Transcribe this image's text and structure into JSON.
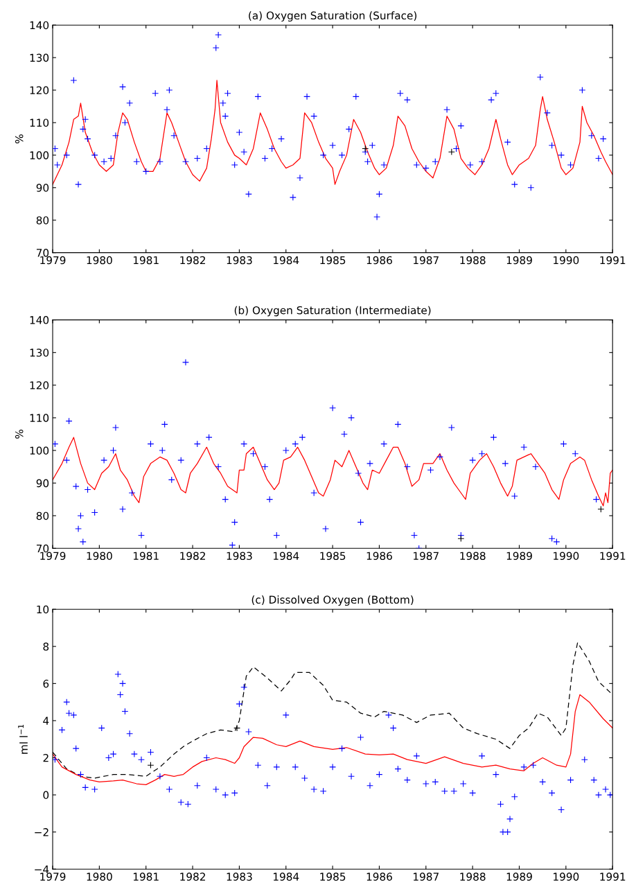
{
  "chart_data": [
    {
      "type": "line",
      "title": "(a) Oxygen Saturation (Surface)",
      "ylabel": "%",
      "xlim": [
        1979,
        1991
      ],
      "xticks": [
        1979,
        1980,
        1981,
        1982,
        1983,
        1984,
        1985,
        1986,
        1987,
        1988,
        1989,
        1990,
        1991
      ],
      "ylim": [
        70,
        140
      ],
      "yticks": [
        70,
        80,
        90,
        100,
        110,
        120,
        130,
        140
      ],
      "series": [
        {
          "color": "#ff0000",
          "line_style": "solid",
          "x": [
            1979.0,
            1979.2,
            1979.35,
            1979.45,
            1979.55,
            1979.6,
            1979.7,
            1979.85,
            1980.0,
            1980.15,
            1980.3,
            1980.4,
            1980.5,
            1980.6,
            1980.75,
            1980.9,
            1981.0,
            1981.15,
            1981.3,
            1981.45,
            1981.55,
            1981.7,
            1981.85,
            1982.0,
            1982.15,
            1982.3,
            1982.4,
            1982.48,
            1982.52,
            1982.6,
            1982.75,
            1982.9,
            1983.0,
            1983.15,
            1983.3,
            1983.45,
            1983.6,
            1983.75,
            1983.9,
            1984.0,
            1984.15,
            1984.3,
            1984.4,
            1984.55,
            1984.7,
            1984.85,
            1985.0,
            1985.05,
            1985.15,
            1985.3,
            1985.45,
            1985.6,
            1985.75,
            1985.9,
            1986.0,
            1986.15,
            1986.3,
            1986.4,
            1986.55,
            1986.7,
            1986.85,
            1987.0,
            1987.15,
            1987.3,
            1987.45,
            1987.6,
            1987.75,
            1987.9,
            1988.05,
            1988.2,
            1988.35,
            1988.5,
            1988.6,
            1988.75,
            1988.85,
            1989.0,
            1989.2,
            1989.35,
            1989.45,
            1989.5,
            1989.6,
            1989.75,
            1989.9,
            1990.0,
            1990.15,
            1990.3,
            1990.35,
            1990.45,
            1990.6,
            1990.75,
            1990.85,
            1991.0
          ],
          "values": [
            91,
            97,
            104,
            111,
            112,
            116,
            107,
            101,
            97,
            95,
            97,
            107,
            113,
            111,
            104,
            98,
            95,
            95,
            99,
            113,
            110,
            104,
            98,
            94,
            92,
            96,
            105,
            114,
            123,
            110,
            104,
            100,
            99,
            97,
            102,
            113,
            108,
            102,
            98,
            96,
            97,
            99,
            113,
            110,
            104,
            99,
            96,
            91,
            95,
            100,
            111,
            107,
            101,
            96,
            94,
            96,
            103,
            112,
            109,
            102,
            98,
            95,
            93,
            99,
            112,
            108,
            99,
            96,
            94,
            97,
            102,
            111,
            105,
            97,
            94,
            97,
            99,
            103,
            114,
            118,
            111,
            104,
            96,
            94,
            96,
            104,
            115,
            110,
            106,
            101,
            98,
            94
          ]
        },
        {
          "type": "scatter",
          "marker": "cross",
          "color": "#0000ff",
          "x": [
            1979.05,
            1979.1,
            1979.3,
            1979.45,
            1979.55,
            1979.65,
            1979.7,
            1979.75,
            1979.9,
            1980.1,
            1980.25,
            1980.35,
            1980.5,
            1980.55,
            1980.65,
            1980.8,
            1981.0,
            1981.2,
            1981.3,
            1981.45,
            1981.5,
            1981.6,
            1981.85,
            1982.1,
            1982.3,
            1982.5,
            1982.55,
            1982.65,
            1982.7,
            1982.75,
            1982.9,
            1983.0,
            1983.1,
            1983.2,
            1983.4,
            1983.55,
            1983.7,
            1983.9,
            1984.15,
            1984.3,
            1984.45,
            1984.6,
            1984.8,
            1985.0,
            1985.2,
            1985.35,
            1985.5,
            1985.7,
            1985.75,
            1985.85,
            1985.95,
            1986.0,
            1986.1,
            1986.45,
            1986.6,
            1986.8,
            1987.0,
            1987.2,
            1987.45,
            1987.65,
            1987.75,
            1987.95,
            1988.2,
            1988.4,
            1988.5,
            1988.75,
            1988.9,
            1989.25,
            1989.45,
            1989.6,
            1989.7,
            1989.9,
            1990.1,
            1990.35,
            1990.55,
            1990.7,
            1990.8
          ],
          "values": [
            102,
            97,
            100,
            123,
            91,
            108,
            111,
            105,
            100,
            98,
            99,
            106,
            121,
            110,
            116,
            98,
            95,
            119,
            98,
            114,
            120,
            106,
            98,
            99,
            102,
            133,
            137,
            116,
            112,
            119,
            97,
            107,
            101,
            88,
            118,
            99,
            102,
            105,
            87,
            93,
            118,
            112,
            100,
            103,
            100,
            108,
            118,
            101,
            98,
            103,
            81,
            88,
            97,
            119,
            117,
            97,
            96,
            98,
            114,
            102,
            109,
            97,
            98,
            117,
            119,
            104,
            91,
            90,
            124,
            113,
            103,
            100,
            97,
            120,
            106,
            99,
            105
          ]
        },
        {
          "type": "scatter",
          "marker": "cross",
          "color": "#000000",
          "x": [
            1985.7,
            1987.55
          ],
          "values": [
            102,
            101
          ]
        }
      ]
    },
    {
      "type": "line",
      "title": "(b) Oxygen Saturation (Intermediate)",
      "ylabel": "%",
      "xlim": [
        1979,
        1991
      ],
      "xticks": [
        1979,
        1980,
        1981,
        1982,
        1983,
        1984,
        1985,
        1986,
        1987,
        1988,
        1989,
        1990,
        1991
      ],
      "ylim": [
        70,
        140
      ],
      "yticks": [
        70,
        80,
        90,
        100,
        110,
        120,
        130,
        140
      ],
      "series": [
        {
          "color": "#ff0000",
          "line_style": "solid",
          "x": [
            1979.0,
            1979.2,
            1979.35,
            1979.45,
            1979.6,
            1979.75,
            1979.9,
            1980.05,
            1980.2,
            1980.35,
            1980.45,
            1980.6,
            1980.75,
            1980.85,
            1980.95,
            1981.1,
            1981.3,
            1981.45,
            1981.6,
            1981.75,
            1981.85,
            1981.95,
            1982.1,
            1982.3,
            1982.45,
            1982.6,
            1982.75,
            1982.95,
            1983.0,
            1983.1,
            1983.15,
            1983.3,
            1983.45,
            1983.6,
            1983.75,
            1983.85,
            1983.95,
            1984.1,
            1984.25,
            1984.4,
            1984.55,
            1984.7,
            1984.8,
            1984.95,
            1985.05,
            1985.2,
            1985.35,
            1985.5,
            1985.65,
            1985.75,
            1985.85,
            1986.0,
            1986.15,
            1986.3,
            1986.4,
            1986.55,
            1986.7,
            1986.85,
            1986.95,
            1987.15,
            1987.3,
            1987.45,
            1987.6,
            1987.75,
            1987.85,
            1987.95,
            1988.15,
            1988.3,
            1988.45,
            1988.6,
            1988.75,
            1988.85,
            1988.95,
            1989.1,
            1989.25,
            1989.4,
            1989.55,
            1989.7,
            1989.85,
            1989.95,
            1990.1,
            1990.3,
            1990.4,
            1990.55,
            1990.7,
            1990.8,
            1990.85,
            1990.9,
            1990.95,
            1991.0
          ],
          "values": [
            91,
            96,
            101,
            104,
            96,
            90,
            88,
            93,
            95,
            99,
            94,
            91,
            86,
            84,
            92,
            96,
            98,
            97,
            93,
            88,
            87,
            93,
            96,
            101,
            96,
            93,
            89,
            87,
            94,
            94,
            99,
            101,
            96,
            91,
            88,
            90,
            97,
            98,
            101,
            97,
            92,
            87,
            86,
            91,
            97,
            95,
            100,
            95,
            90,
            88,
            94,
            93,
            97,
            101,
            101,
            96,
            89,
            91,
            96,
            96,
            99,
            94,
            90,
            87,
            85,
            93,
            97,
            99,
            95,
            90,
            86,
            89,
            97,
            98,
            99,
            96,
            93,
            88,
            85,
            91,
            96,
            98,
            97,
            91,
            86,
            83,
            87,
            84,
            93,
            94
          ]
        },
        {
          "type": "scatter",
          "marker": "cross",
          "color": "#0000ff",
          "x": [
            1979.05,
            1979.3,
            1979.35,
            1979.5,
            1979.55,
            1979.6,
            1979.65,
            1979.75,
            1979.9,
            1980.1,
            1980.3,
            1980.35,
            1980.5,
            1980.7,
            1980.9,
            1981.1,
            1981.35,
            1981.4,
            1981.55,
            1981.75,
            1981.85,
            1982.1,
            1982.35,
            1982.55,
            1982.7,
            1982.85,
            1982.9,
            1983.1,
            1983.3,
            1983.55,
            1983.65,
            1983.8,
            1984.0,
            1984.2,
            1984.35,
            1984.6,
            1984.85,
            1985.0,
            1985.25,
            1985.4,
            1985.55,
            1985.6,
            1985.8,
            1986.1,
            1986.4,
            1986.6,
            1986.75,
            1986.85,
            1987.1,
            1987.3,
            1987.55,
            1987.75,
            1988.0,
            1988.2,
            1988.45,
            1988.7,
            1988.9,
            1989.1,
            1989.35,
            1989.7,
            1989.8,
            1989.95,
            1990.2,
            1990.65
          ],
          "values": [
            102,
            97,
            109,
            89,
            76,
            80,
            72,
            88,
            81,
            97,
            100,
            107,
            82,
            87,
            74,
            102,
            100,
            108,
            91,
            97,
            127,
            102,
            104,
            95,
            85,
            71,
            78,
            102,
            99,
            95,
            85,
            74,
            100,
            102,
            104,
            87,
            76,
            113,
            105,
            110,
            93,
            78,
            96,
            102,
            108,
            95,
            74,
            70,
            94,
            98,
            107,
            74,
            97,
            99,
            104,
            96,
            86,
            101,
            95,
            73,
            72,
            102,
            99,
            85
          ]
        },
        {
          "type": "scatter",
          "marker": "cross",
          "color": "#000000",
          "x": [
            1987.75,
            1990.75
          ],
          "values": [
            73,
            82
          ]
        }
      ]
    },
    {
      "type": "line",
      "title": "(c) Dissolved Oxygen (Bottom)",
      "ylabel": "ml l$^{−1}$",
      "xlim": [
        1979,
        1991
      ],
      "xticks": [
        1979,
        1980,
        1981,
        1982,
        1983,
        1984,
        1985,
        1986,
        1987,
        1988,
        1989,
        1990,
        1991
      ],
      "ylim": [
        -4,
        10
      ],
      "yticks": [
        {
          "value": -4,
          "label": "−4"
        },
        {
          "value": -2,
          "label": "−2"
        },
        0,
        2,
        4,
        6,
        8,
        10
      ],
      "series": [
        {
          "color": "#000000",
          "line_style": "dashed",
          "x": [
            1979.0,
            1979.3,
            1979.6,
            1979.9,
            1980.3,
            1980.6,
            1981.0,
            1981.3,
            1981.6,
            1981.8,
            1982.0,
            1982.3,
            1982.6,
            1982.9,
            1983.0,
            1983.15,
            1983.3,
            1983.6,
            1983.9,
            1984.1,
            1984.2,
            1984.5,
            1984.8,
            1985.0,
            1985.3,
            1985.6,
            1985.9,
            1986.1,
            1986.5,
            1986.8,
            1987.1,
            1987.5,
            1987.8,
            1988.1,
            1988.5,
            1988.8,
            1989.0,
            1989.2,
            1989.4,
            1989.6,
            1989.9,
            1990.0,
            1990.15,
            1990.25,
            1990.5,
            1990.7,
            1991.0
          ],
          "values": [
            2.3,
            1.4,
            1.0,
            0.9,
            1.1,
            1.1,
            1.0,
            1.5,
            2.2,
            2.6,
            2.9,
            3.3,
            3.5,
            3.4,
            4.0,
            6.4,
            6.9,
            6.3,
            5.6,
            6.2,
            6.6,
            6.6,
            5.9,
            5.1,
            5.0,
            4.4,
            4.2,
            4.5,
            4.3,
            3.9,
            4.3,
            4.4,
            3.6,
            3.3,
            3.0,
            2.5,
            3.2,
            3.6,
            4.4,
            4.2,
            3.2,
            3.6,
            7.0,
            8.2,
            7.2,
            6.1,
            5.4
          ]
        },
        {
          "color": "#ff0000",
          "line_style": "solid",
          "x": [
            1979.0,
            1979.2,
            1979.5,
            1979.8,
            1980.0,
            1980.3,
            1980.5,
            1980.8,
            1981.0,
            1981.2,
            1981.4,
            1981.6,
            1981.8,
            1982.0,
            1982.2,
            1982.5,
            1982.7,
            1982.9,
            1983.0,
            1983.1,
            1983.3,
            1983.5,
            1983.8,
            1984.0,
            1984.3,
            1984.6,
            1985.0,
            1985.3,
            1985.7,
            1986.0,
            1986.3,
            1986.6,
            1987.0,
            1987.4,
            1987.8,
            1988.2,
            1988.5,
            1988.8,
            1989.1,
            1989.3,
            1989.5,
            1989.8,
            1990.0,
            1990.1,
            1990.2,
            1990.3,
            1990.5,
            1990.8,
            1991.0
          ],
          "values": [
            2.2,
            1.5,
            1.1,
            0.8,
            0.7,
            0.75,
            0.8,
            0.6,
            0.55,
            0.8,
            1.1,
            1.0,
            1.1,
            1.5,
            1.8,
            2.0,
            1.9,
            1.7,
            2.0,
            2.6,
            3.1,
            3.05,
            2.7,
            2.6,
            2.9,
            2.6,
            2.45,
            2.55,
            2.2,
            2.15,
            2.2,
            1.9,
            1.7,
            2.05,
            1.7,
            1.5,
            1.6,
            1.4,
            1.3,
            1.7,
            2.0,
            1.6,
            1.5,
            2.2,
            4.5,
            5.4,
            5.0,
            4.1,
            3.6
          ]
        },
        {
          "type": "scatter",
          "marker": "cross",
          "color": "#0000ff",
          "x": [
            1979.05,
            1979.2,
            1979.3,
            1979.35,
            1979.45,
            1979.5,
            1979.6,
            1979.7,
            1979.9,
            1980.05,
            1980.2,
            1980.3,
            1980.4,
            1980.45,
            1980.5,
            1980.55,
            1980.65,
            1980.75,
            1980.9,
            1981.1,
            1981.3,
            1981.5,
            1981.75,
            1981.9,
            1982.1,
            1982.3,
            1982.5,
            1982.7,
            1982.9,
            1983.0,
            1983.1,
            1983.2,
            1983.4,
            1983.6,
            1983.8,
            1984.0,
            1984.2,
            1984.4,
            1984.6,
            1984.8,
            1985.0,
            1985.2,
            1985.4,
            1985.6,
            1985.8,
            1986.0,
            1986.2,
            1986.3,
            1986.4,
            1986.6,
            1986.8,
            1987.0,
            1987.2,
            1987.4,
            1987.6,
            1987.8,
            1988.0,
            1988.2,
            1988.5,
            1988.6,
            1988.65,
            1988.75,
            1988.8,
            1988.9,
            1989.1,
            1989.3,
            1989.5,
            1989.7,
            1989.9,
            1990.1,
            1990.4,
            1990.6,
            1990.7,
            1990.85,
            1990.95
          ],
          "values": [
            1.9,
            3.5,
            5.0,
            4.4,
            4.3,
            2.5,
            1.1,
            0.4,
            0.3,
            3.6,
            2.0,
            2.2,
            6.5,
            5.4,
            6.0,
            4.5,
            3.3,
            2.2,
            1.9,
            2.3,
            1.0,
            0.3,
            -0.4,
            -0.5,
            0.5,
            2.0,
            0.3,
            0.0,
            0.1,
            4.9,
            5.8,
            3.4,
            1.6,
            0.5,
            1.5,
            4.3,
            1.5,
            0.9,
            0.3,
            0.2,
            1.5,
            2.5,
            1.0,
            3.1,
            0.5,
            1.1,
            4.3,
            3.6,
            1.4,
            0.8,
            2.1,
            0.6,
            0.7,
            0.2,
            0.2,
            0.6,
            0.1,
            2.1,
            1.1,
            -0.5,
            -2.0,
            -2.0,
            -1.3,
            -0.1,
            1.5,
            1.6,
            0.7,
            0.1,
            -0.8,
            0.8,
            1.9,
            0.8,
            0.0,
            0.3,
            0.0
          ]
        },
        {
          "type": "scatter",
          "marker": "cross",
          "color": "#000000",
          "x": [
            1981.1,
            1982.95
          ],
          "values": [
            1.6,
            3.6
          ]
        }
      ]
    }
  ]
}
